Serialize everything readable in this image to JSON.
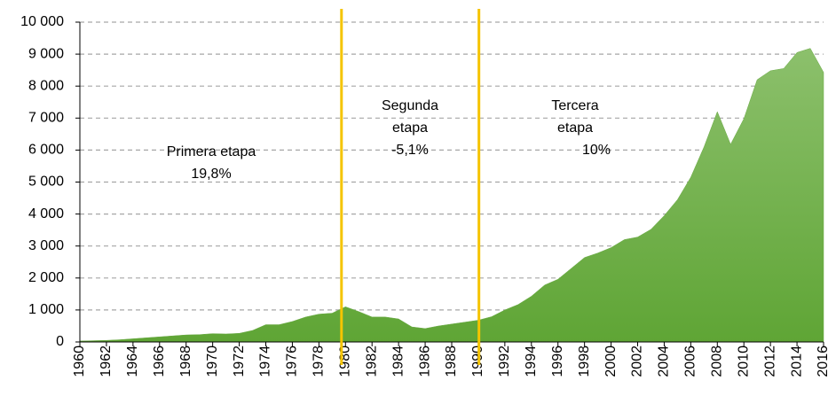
{
  "chart_data": {
    "type": "area",
    "x": [
      1960,
      1961,
      1962,
      1963,
      1964,
      1965,
      1966,
      1967,
      1968,
      1969,
      1970,
      1971,
      1972,
      1973,
      1974,
      1975,
      1976,
      1977,
      1978,
      1979,
      1980,
      1981,
      1982,
      1983,
      1984,
      1985,
      1986,
      1987,
      1988,
      1989,
      1990,
      1991,
      1992,
      1993,
      1994,
      1995,
      1996,
      1997,
      1998,
      1999,
      2000,
      2001,
      2002,
      2003,
      2004,
      2005,
      2006,
      2007,
      2008,
      2009,
      2010,
      2011,
      2012,
      2013,
      2014,
      2015,
      2016
    ],
    "series": [
      {
        "color": "#6aaa45",
        "values": [
          30,
          40,
          50,
          70,
          100,
          130,
          160,
          190,
          220,
          230,
          260,
          250,
          270,
          360,
          540,
          540,
          640,
          780,
          870,
          900,
          1100,
          950,
          780,
          780,
          720,
          470,
          420,
          500,
          560,
          620,
          680,
          790,
          1000,
          1170,
          1430,
          1780,
          1960,
          2300,
          2640,
          2780,
          2950,
          3200,
          3280,
          3520,
          3950,
          4450,
          5150,
          6100,
          7200,
          6180,
          6980,
          8200,
          8480,
          8550,
          9050,
          9180,
          8430
        ]
      }
    ],
    "xlim": [
      1960,
      2016
    ],
    "xticks": [
      1960,
      1962,
      1964,
      1966,
      1968,
      1970,
      1972,
      1974,
      1976,
      1978,
      1980,
      1982,
      1984,
      1986,
      1988,
      1990,
      1992,
      1994,
      1996,
      1998,
      2000,
      2002,
      2004,
      2006,
      2008,
      2010,
      2012,
      2014,
      2016
    ],
    "ylim": [
      0,
      10000
    ],
    "yticks": [
      0,
      {
        "value": 1000,
        "label": "1 000"
      },
      {
        "value": 2000,
        "label": "2 000"
      },
      {
        "value": 3000,
        "label": "3 000"
      },
      {
        "value": 4000,
        "label": "4 000"
      },
      {
        "value": 5000,
        "label": "5 000"
      },
      {
        "value": 6000,
        "label": "6 000"
      },
      {
        "value": 7000,
        "label": "7 000"
      },
      {
        "value": 8000,
        "label": "8 000"
      },
      {
        "value": 9000,
        "label": "9 000"
      },
      {
        "value": 10000,
        "label": "10 000"
      }
    ],
    "grid": true,
    "vlines": {
      "color": "#f5c400",
      "values": [
        1979.7,
        1990.05
      ]
    },
    "annotations": [
      [
        "Primera etapa",
        "19,8%"
      ],
      [
        "Segunda",
        "etapa",
        "-5,1%"
      ],
      [
        "Tercera",
        "etapa",
        "10%"
      ]
    ]
  }
}
